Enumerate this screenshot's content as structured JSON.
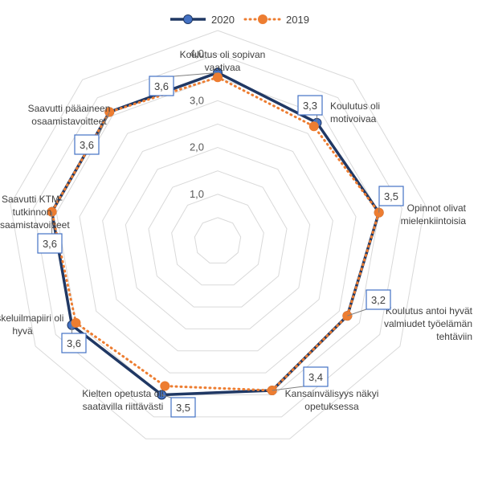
{
  "chart_data": {
    "type": "radar",
    "categories": [
      "Koulutus oli sopivan vaativaa",
      "Koulutus oli motivoivaa",
      "Opinnot olivat mielenkiintoisia",
      "Koulutus antoi hyvät valmiudet työelämän tehtäviin",
      "Kansainvälisyys näkyi opetuksessa",
      "Kielten opetusta oli saatavilla riittävästi",
      "Opiskeluilmapiiri oli hyvä",
      "Saavutti KTM-tutkinnon osaamistavoitteet",
      "Saavutti pääaineen osaamistavoitteet"
    ],
    "category_lines": [
      [
        "Koulutus oli sopivan",
        "vaativaa"
      ],
      [
        "Koulutus oli",
        "motivoivaa"
      ],
      [
        "Opinnot olivat",
        "mielenkiintoisia"
      ],
      [
        "Koulutus antoi hyvät",
        "valmiudet työelämän",
        "tehtäviin"
      ],
      [
        "Kansainvälisyys näkyi",
        "opetuksessa"
      ],
      [
        "Kielten opetusta oli",
        "saatavilla riittävästi"
      ],
      [
        "Opiskeluilmapiiri oli",
        "hyvä"
      ],
      [
        "Saavutti KTM-",
        "tutkinnon",
        "osaamistavoitteet"
      ],
      [
        "Saavutti pääaineen",
        "osaamistavoitteet"
      ]
    ],
    "series": [
      {
        "name": "2020",
        "values": [
          3.6,
          3.3,
          3.5,
          3.2,
          3.4,
          3.5,
          3.6,
          3.6,
          3.6
        ],
        "color": "#203864",
        "style": "solid"
      },
      {
        "name": "2019",
        "values": [
          3.5,
          3.2,
          3.5,
          3.2,
          3.4,
          3.3,
          3.5,
          3.6,
          3.6
        ],
        "color": "#ED7D31",
        "style": "dotted"
      }
    ],
    "data_labels": [
      "3,6",
      "3,3",
      "3,5",
      "3,2",
      "3,4",
      "3,5",
      "3,6",
      "3,6",
      "3,6"
    ],
    "ticks": [
      "1,0",
      "2,0",
      "3,0",
      "4,0"
    ],
    "tick_values": [
      1,
      2,
      3,
      4
    ],
    "rmin": 0,
    "rmax": 4.5,
    "grid": true,
    "legend_position": "top",
    "colors": {
      "series_2020": "#203864",
      "series_2019": "#ED7D31",
      "marker_2020": "#4472C4",
      "grid": "#D9D9D9",
      "label_box": "#4472C4"
    }
  }
}
